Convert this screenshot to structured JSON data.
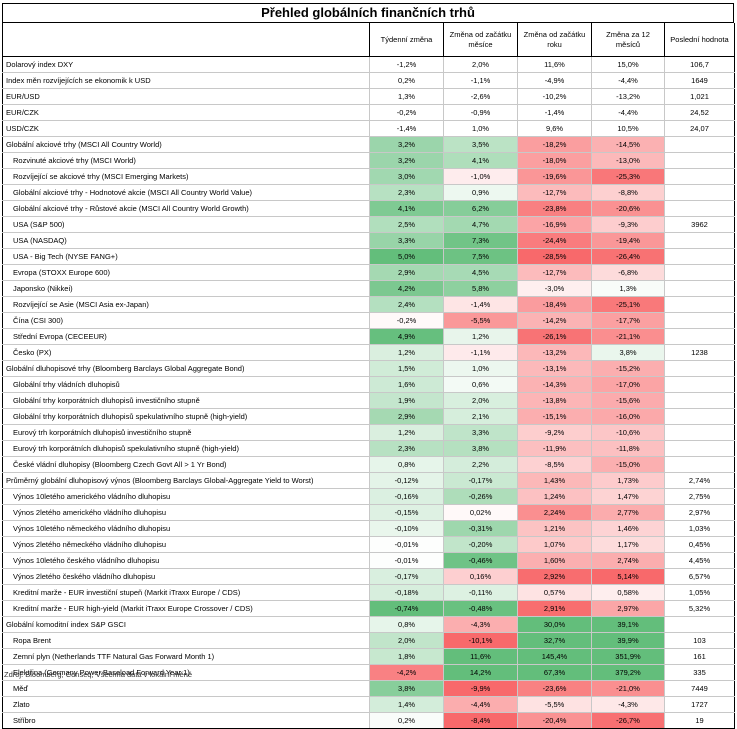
{
  "title": "Přehled globálních finančních trhů",
  "headers": [
    "",
    "Týdenní změna",
    "Změna od začátku měsíce",
    "Změna od začátku roku",
    "Změna za 12 měsíců",
    "Poslední hodnota"
  ],
  "footer": "Zdroj: Bloomberg, Conseq; Všechna data v lokální měně",
  "rows": [
    {
      "name": "Dolarový index DXY",
      "v": [
        "-1,2%",
        "2,0%",
        "11,6%",
        "15,0%"
      ],
      "last": "106,7",
      "g": 0
    },
    {
      "name": "Index měn rozvíjejících se ekonomik k USD",
      "v": [
        "0,2%",
        "-1,1%",
        "-4,9%",
        "-4,4%"
      ],
      "last": "1649",
      "g": 0
    },
    {
      "name": "EUR/USD",
      "v": [
        "1,3%",
        "-2,6%",
        "-10,2%",
        "-13,2%"
      ],
      "last": "1,021",
      "g": 0
    },
    {
      "name": "EUR/CZK",
      "v": [
        "-0,2%",
        "-0,9%",
        "-1,4%",
        "-4,4%"
      ],
      "last": "24,52",
      "g": 0
    },
    {
      "name": "USD/CZK",
      "v": [
        "-1,4%",
        "1,0%",
        "9,6%",
        "10,5%"
      ],
      "last": "24,07",
      "g": 0
    },
    {
      "name": "Globální akciové trhy (MSCI All Country World)",
      "v": [
        "3,2%",
        "3,5%",
        "-18,2%",
        "-14,5%"
      ],
      "last": "",
      "g": 1
    },
    {
      "name": "Rozvinuté akciové trhy (MSCI World)",
      "v": [
        "3,2%",
        "4,1%",
        "-18,0%",
        "-13,0%"
      ],
      "last": "",
      "ind": 1
    },
    {
      "name": "Rozvíjející se akciové trhy (MSCI Emerging Markets)",
      "v": [
        "3,0%",
        "-1,0%",
        "-19,6%",
        "-25,3%"
      ],
      "last": "",
      "ind": 1
    },
    {
      "name": "Globální akciové trhy - Hodnotové akcie (MSCI All Country World Value)",
      "v": [
        "2,3%",
        "0,9%",
        "-12,7%",
        "-8,8%"
      ],
      "last": "",
      "ind": 1
    },
    {
      "name": "Globální akciové trhy - Růstové akcie (MSCI All Country World Growth)",
      "v": [
        "4,1%",
        "6,2%",
        "-23,8%",
        "-20,6%"
      ],
      "last": "",
      "ind": 1
    },
    {
      "name": "USA (S&P 500)",
      "v": [
        "2,5%",
        "4,7%",
        "-16,9%",
        "-9,3%"
      ],
      "last": "3962",
      "ind": 1
    },
    {
      "name": "USA (NASDAQ)",
      "v": [
        "3,3%",
        "7,3%",
        "-24,4%",
        "-19,4%"
      ],
      "last": "",
      "ind": 1
    },
    {
      "name": "USA - Big Tech (NYSE FANG+)",
      "v": [
        "5,0%",
        "7,5%",
        "-28,5%",
        "-26,4%"
      ],
      "last": "",
      "ind": 1
    },
    {
      "name": "Evropa (STOXX Europe 600)",
      "v": [
        "2,9%",
        "4,5%",
        "-12,7%",
        "-6,8%"
      ],
      "last": "",
      "ind": 1
    },
    {
      "name": "Japonsko (Nikkei)",
      "v": [
        "4,2%",
        "5,8%",
        "-3,0%",
        "1,3%"
      ],
      "last": "",
      "ind": 1
    },
    {
      "name": "Rozvíjející se Asie (MSCI Asia ex-Japan)",
      "v": [
        "2,4%",
        "-1,4%",
        "-18,4%",
        "-25,1%"
      ],
      "last": "",
      "ind": 1
    },
    {
      "name": "Čína (CSI 300)",
      "v": [
        "-0,2%",
        "-5,5%",
        "-14,2%",
        "-17,7%"
      ],
      "last": "",
      "ind": 1
    },
    {
      "name": "Střední Evropa (CECEEUR)",
      "v": [
        "4,9%",
        "1,2%",
        "-26,1%",
        "-21,1%"
      ],
      "last": "",
      "ind": 1
    },
    {
      "name": "Česko (PX)",
      "v": [
        "1,2%",
        "-1,1%",
        "-13,2%",
        "3,8%"
      ],
      "last": "1238",
      "ind": 1
    },
    {
      "name": "Globální dluhopisové trhy (Bloomberg Barclays Global Aggregate Bond)",
      "v": [
        "1,5%",
        "1,0%",
        "-13,1%",
        "-15,2%"
      ],
      "last": "",
      "g": 1
    },
    {
      "name": "Globální trhy vládních dluhopisů",
      "v": [
        "1,6%",
        "0,6%",
        "-14,3%",
        "-17,0%"
      ],
      "last": "",
      "ind": 1
    },
    {
      "name": "Globální trhy korporátních dluhopisů investičního stupně",
      "v": [
        "1,9%",
        "2,0%",
        "-13,8%",
        "-15,6%"
      ],
      "last": "",
      "ind": 1
    },
    {
      "name": "Globální trhy korporátních dluhopisů spekulativního stupně (high-yield)",
      "v": [
        "2,9%",
        "2,1%",
        "-15,1%",
        "-16,0%"
      ],
      "last": "",
      "ind": 1
    },
    {
      "name": "Eurový trh korporátních dluhopisů investičního stupně",
      "v": [
        "1,2%",
        "3,3%",
        "-9,2%",
        "-10,6%"
      ],
      "last": "",
      "ind": 1
    },
    {
      "name": "Eurový trh korporátních dluhopisů spekulativního stupně (high-yield)",
      "v": [
        "2,3%",
        "3,8%",
        "-11,9%",
        "-11,8%"
      ],
      "last": "",
      "ind": 1
    },
    {
      "name": "České vládní dluhopisy (Bloomberg Czech Govt All > 1 Yr Bond)",
      "v": [
        "0,8%",
        "2,2%",
        "-8,5%",
        "-15,0%"
      ],
      "last": "",
      "ind": 1
    },
    {
      "name": "Průměrný globální dluhopisový výnos (Bloomberg Barclays Global-Aggregate Yield to Worst)",
      "v": [
        "-0,12%",
        "-0,17%",
        "1,43%",
        "1,73%"
      ],
      "last": "2,74%",
      "g": 1,
      "yield": 1
    },
    {
      "name": "Výnos 10letého amerického vládního dluhopisu",
      "v": [
        "-0,16%",
        "-0,26%",
        "1,24%",
        "1,47%"
      ],
      "last": "2,75%",
      "ind": 1,
      "yield": 1
    },
    {
      "name": "Výnos 2letého amerického vládního dluhopisu",
      "v": [
        "-0,15%",
        "0,02%",
        "2,24%",
        "2,77%"
      ],
      "last": "2,97%",
      "ind": 1,
      "yield": 1
    },
    {
      "name": "Výnos 10letého německého vládního dluhopisu",
      "v": [
        "-0,10%",
        "-0,31%",
        "1,21%",
        "1,46%"
      ],
      "last": "1,03%",
      "ind": 1,
      "yield": 1
    },
    {
      "name": "Výnos 2letého německého vládního dluhopisu",
      "v": [
        "-0,01%",
        "-0,20%",
        "1,07%",
        "1,17%"
      ],
      "last": "0,45%",
      "ind": 1,
      "yield": 1
    },
    {
      "name": "Výnos 10letého českého vládního dluhopisu",
      "v": [
        "-0,01%",
        "-0,46%",
        "1,60%",
        "2,74%"
      ],
      "last": "4,45%",
      "ind": 1,
      "yield": 1
    },
    {
      "name": "Výnos 2letého českého vládního dluhopisu",
      "v": [
        "-0,17%",
        "0,16%",
        "2,92%",
        "5,14%"
      ],
      "last": "6,57%",
      "ind": 1,
      "yield": 1
    },
    {
      "name": "Kreditní marže - EUR investiční stupeň (Markit iTraxx Europe / CDS)",
      "v": [
        "-0,18%",
        "-0,11%",
        "0,57%",
        "0,58%"
      ],
      "last": "1,05%",
      "ind": 1,
      "yield": 1
    },
    {
      "name": "Kreditní marže - EUR high-yield (Markit iTraxx Europe Crossover / CDS)",
      "v": [
        "-0,74%",
        "-0,48%",
        "2,91%",
        "2,97%"
      ],
      "last": "5,32%",
      "ind": 1,
      "yield": 1
    },
    {
      "name": "Globální komoditní index S&P GSCI",
      "v": [
        "0,8%",
        "-4,3%",
        "30,0%",
        "39,1%"
      ],
      "last": "",
      "g": 1
    },
    {
      "name": "Ropa Brent",
      "v": [
        "2,0%",
        "-10,1%",
        "32,7%",
        "39,9%"
      ],
      "last": "103",
      "ind": 1
    },
    {
      "name": "Zemní plyn (Netherlands TTF Natural Gas Forward Month 1)",
      "v": [
        "1,8%",
        "11,6%",
        "145,4%",
        "351,9%"
      ],
      "last": "161",
      "ind": 1
    },
    {
      "name": "Elektřina (Germany Power Baseload Forward Year 1)",
      "v": [
        "-4,2%",
        "14,2%",
        "67,3%",
        "379,2%"
      ],
      "last": "335",
      "ind": 1
    },
    {
      "name": "Měď",
      "v": [
        "3,8%",
        "-9,9%",
        "-23,6%",
        "-21,0%"
      ],
      "last": "7449",
      "ind": 1
    },
    {
      "name": "Zlato",
      "v": [
        "1,4%",
        "-4,4%",
        "-5,5%",
        "-4,3%"
      ],
      "last": "1727",
      "ind": 1
    },
    {
      "name": "Stříbro",
      "v": [
        "0,2%",
        "-8,4%",
        "-20,4%",
        "-26,7%"
      ],
      "last": "19",
      "ind": 1
    }
  ]
}
